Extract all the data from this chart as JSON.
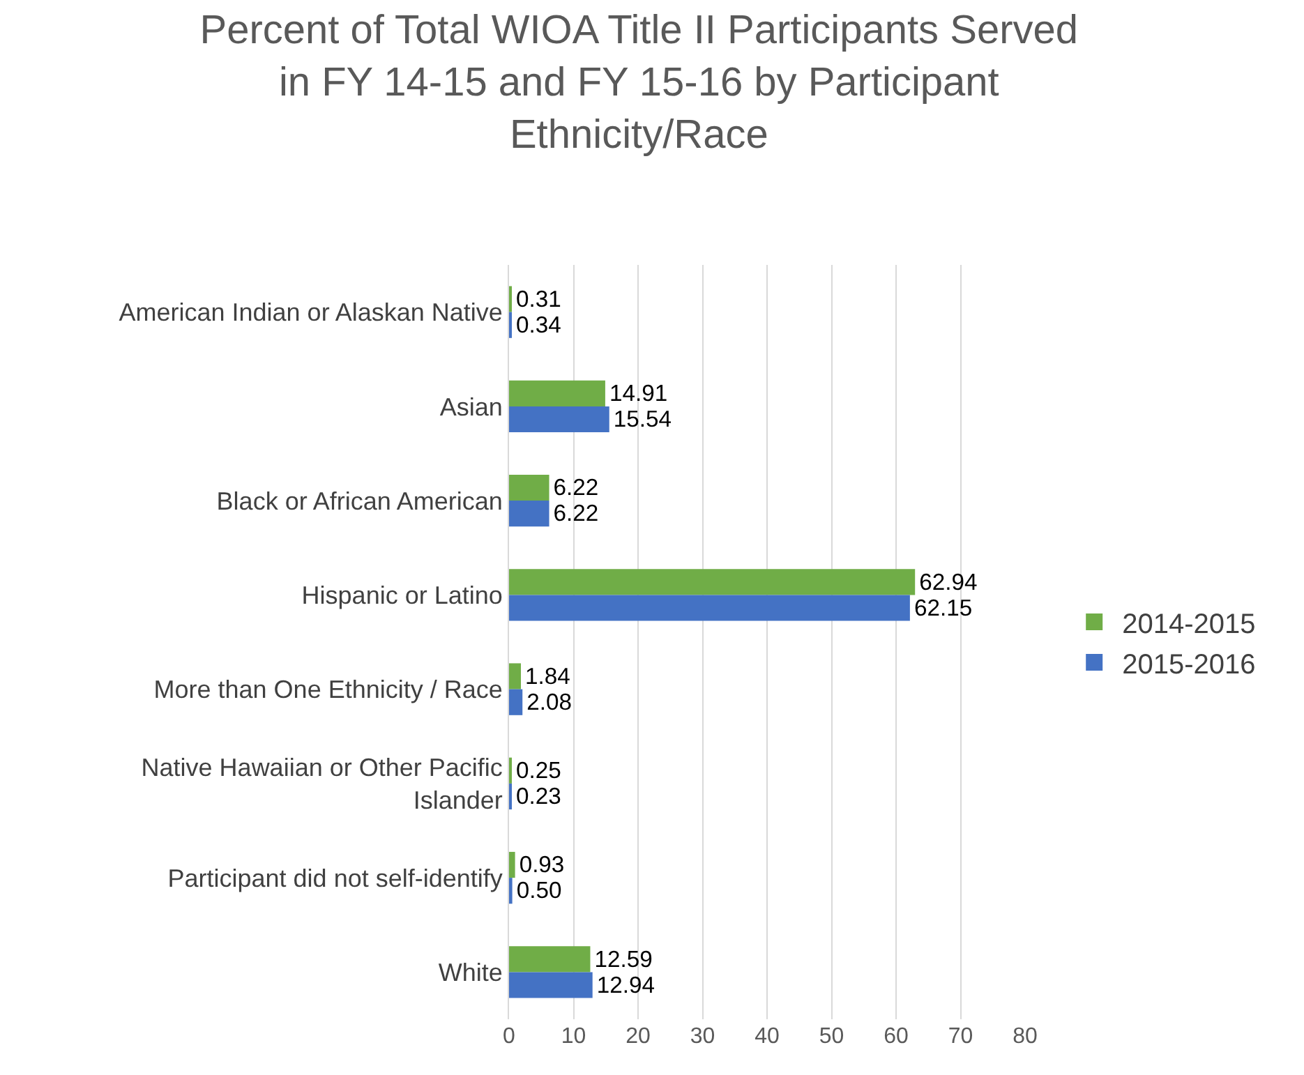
{
  "chart_data": {
    "type": "bar",
    "orientation": "horizontal",
    "title": "Percent of Total WIOA Title II Participants Served\nin FY 14-15 and FY 15-16 by Participant\nEthnicity/Race",
    "categories": [
      "American Indian or Alaskan Native",
      "Asian",
      "Black or African American",
      "Hispanic or Latino",
      "More than One Ethnicity / Race",
      "Native Hawaiian or Other Pacific\nIslander",
      "Participant did not self-identify",
      "White"
    ],
    "series": [
      {
        "name": "2014-2015",
        "color": "#70ad47",
        "values": [
          0.31,
          14.91,
          6.22,
          62.94,
          1.84,
          0.25,
          0.93,
          12.59
        ],
        "value_labels": [
          "0.31",
          "14.91",
          "6.22",
          "62.94",
          "1.84",
          "0.25",
          "0.93",
          "12.59"
        ]
      },
      {
        "name": "2015-2016",
        "color": "#4472c4",
        "values": [
          0.34,
          15.54,
          6.22,
          62.15,
          2.08,
          0.23,
          0.5,
          12.94
        ],
        "value_labels": [
          "0.34",
          "15.54",
          "6.22",
          "62.15",
          "2.08",
          "0.23",
          "0.50",
          "12.94"
        ]
      }
    ],
    "xlim": [
      0,
      80
    ],
    "xticks": [
      0,
      10,
      20,
      30,
      40,
      50,
      60,
      70,
      80
    ],
    "grid": "x",
    "legend": "right"
  }
}
